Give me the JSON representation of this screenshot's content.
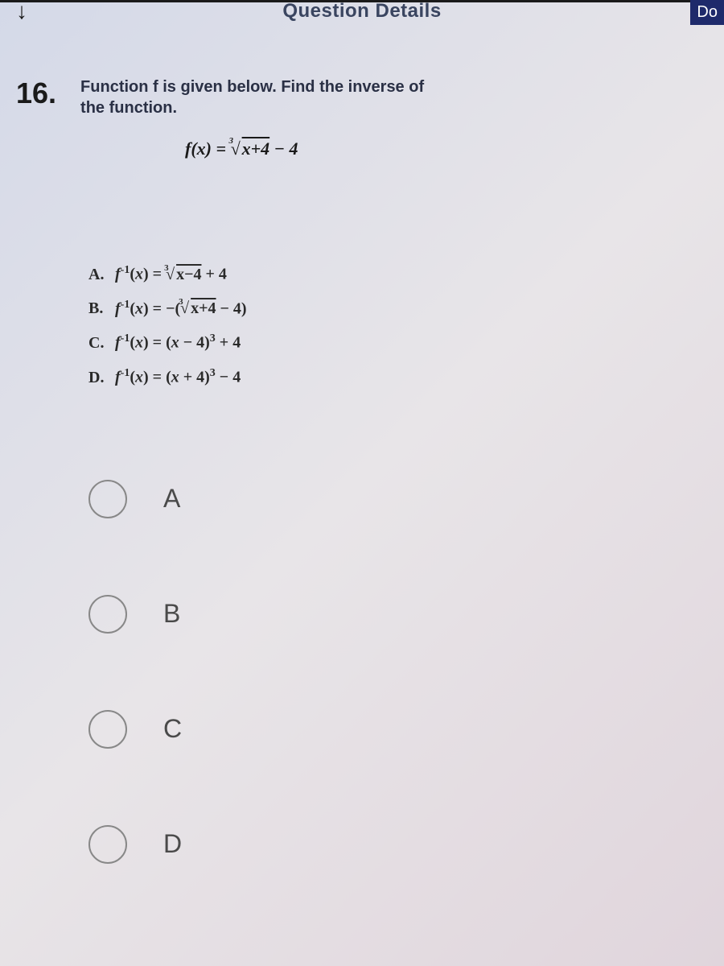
{
  "header": {
    "arrow_icon": "↓",
    "title": "Question Details",
    "done_label": "Do"
  },
  "question": {
    "number": "16.",
    "prompt": "Function f is given below. Find the inverse of the function.",
    "equation": "f(x) = ∛(x+4) − 4"
  },
  "answers": {
    "a": {
      "label": "A.",
      "expr": "f⁻¹(x) = ∛(x−4) + 4"
    },
    "b": {
      "label": "B.",
      "expr": "f⁻¹(x) = −(∛(x+4) − 4)"
    },
    "c": {
      "label": "C.",
      "expr": "f⁻¹(x) = (x − 4)³ + 4"
    },
    "d": {
      "label": "D.",
      "expr": "f⁻¹(x) = (x + 4)³ − 4"
    }
  },
  "options": {
    "a": "A",
    "b": "B",
    "c": "C",
    "d": "D"
  },
  "colors": {
    "bg_start": "#d4d9e8",
    "bg_end": "#e0d5dc",
    "text_dark": "#1a1a1a",
    "text_muted": "#4a4a4a",
    "button_bg": "#1e2a6b",
    "radio_border": "#888888"
  }
}
